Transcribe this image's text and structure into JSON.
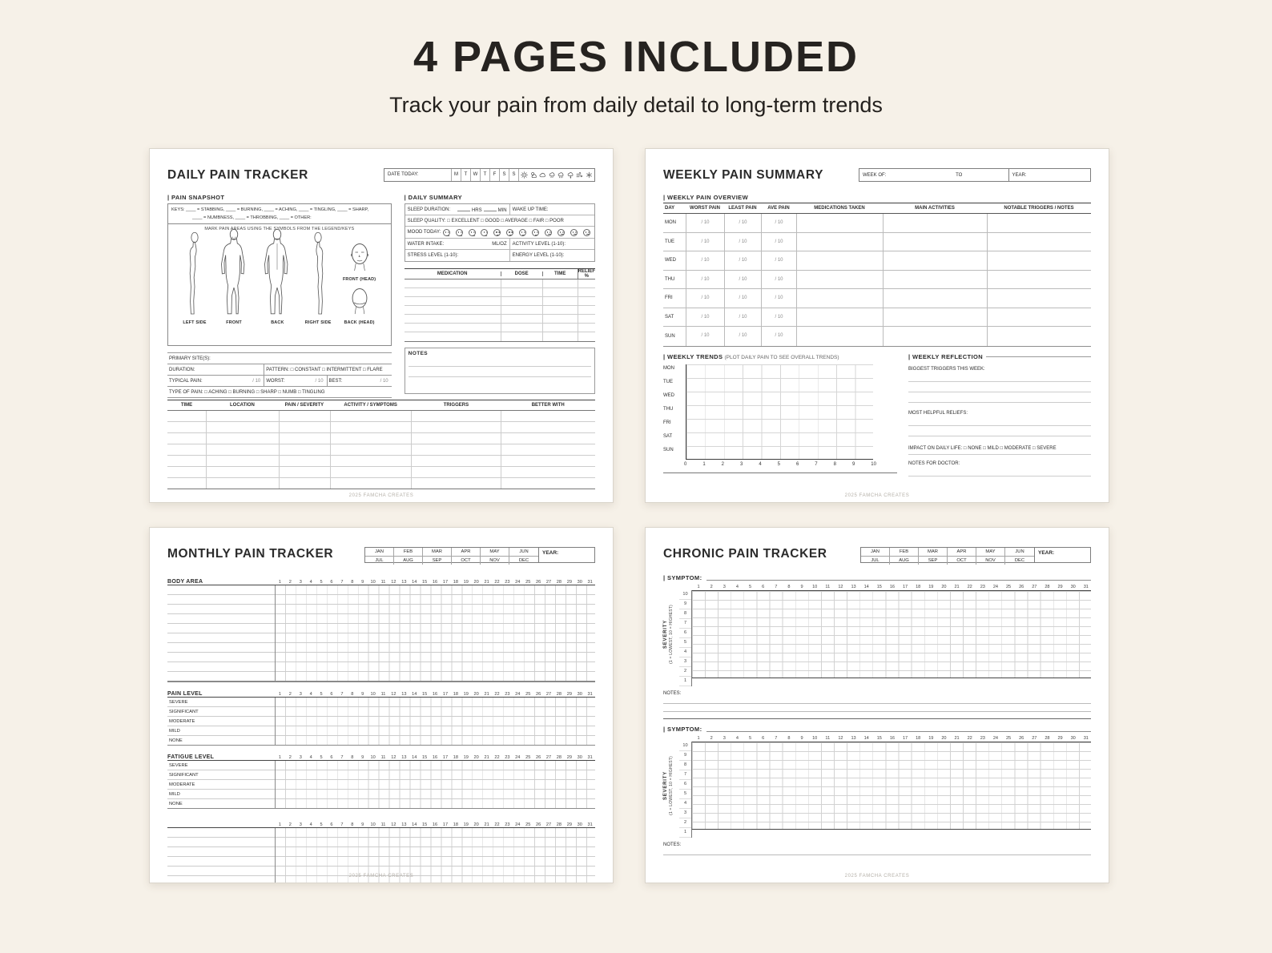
{
  "colors": {
    "bg": "#f6f1e8",
    "page": "#ffffff",
    "ink": "#2b2b2b",
    "grid": "#cccccc"
  },
  "banner": {
    "title": "4 PAGES INCLUDED",
    "subtitle": "Track your pain from daily detail to long-term trends"
  },
  "footer": "2025 FAMCHA CREATES",
  "daily": {
    "title": "DAILY PAIN TRACKER",
    "header": {
      "date_label": "DATE TODAY:",
      "days": [
        "M",
        "T",
        "W",
        "T",
        "F",
        "S",
        "S"
      ],
      "weather_icons": [
        "sun",
        "partly-cloudy",
        "cloud",
        "drizzle",
        "rain",
        "storm",
        "wind",
        "snow"
      ]
    },
    "snapshot": {
      "heading": "| PAIN SNAPSHOT",
      "keys_line1": "KEYS: ____ = STABBING,  ____ = BURNING,  ____ = ACHING,  ____ = TINGLING,  ____ = SHARP,",
      "keys_line2": "____ = NUMBNESS,  ____ = THROBBING,  ____ = OTHER:",
      "mark_note": "MARK PAIN AREAS USING THE SYMBOLS FROM THE LEGEND/KEYS",
      "figure_labels": [
        "LEFT SIDE",
        "FRONT",
        "BACK",
        "RIGHT SIDE"
      ],
      "head_front": "FRONT (HEAD)",
      "head_back": "BACK (HEAD)"
    },
    "summary": {
      "heading": "| DAILY SUMMARY",
      "sleep_duration": "SLEEP DURATION:",
      "hrs": "HRS",
      "min": "MIN",
      "wake_up": "WAKE UP TIME:",
      "sleep_quality": "SLEEP QUALITY:  □ EXCELLENT   □ GOOD   □ AVERAGE   □ FAIR   □ POOR",
      "mood_label": "MOOD TODAY:",
      "water": "WATER INTAKE:",
      "mloz": "ML/OZ",
      "activity": "ACTIVITY LEVEL (1-10):",
      "stress": "STRESS LEVEL (1-10):",
      "energy": "ENERGY LEVEL (1-10):"
    },
    "medication": {
      "headers": [
        "MEDICATION",
        "DOSE",
        "TIME",
        "RELIEF %"
      ]
    },
    "notes_label": "NOTES",
    "details": {
      "primary_site": "PRIMARY SITE(S):",
      "duration": "DURATION:",
      "pattern": "PATTERN:  □ CONSTANT  □ INTERMITTENT  □ FLARE",
      "typical": "TYPICAL PAIN:",
      "worst": "WORST:",
      "best": "BEST:",
      "out_of": "/ 10",
      "type_of_pain": "TYPE OF PAIN:  □ ACHING   □ BURNING   □ SHARP   □ NUMB   □ TINGLING"
    },
    "log_headers": [
      "TIME",
      "LOCATION",
      "PAIN / SEVERITY",
      "ACTIVITY / SYMPTOMS",
      "TRIGGERS",
      "BETTER WITH"
    ]
  },
  "weekly": {
    "title": "WEEKLY PAIN SUMMARY",
    "header": {
      "week_of": "WEEK OF:",
      "to": "TO",
      "year": "YEAR:"
    },
    "overview": {
      "heading": "| WEEKLY PAIN OVERVIEW",
      "headers": [
        "DAY",
        "WORST PAIN",
        "LEAST PAIN",
        "AVE PAIN",
        "MEDICATIONS TAKEN",
        "MAIN ACTIVITIES",
        "NOTABLE TRIGGERS / NOTES"
      ],
      "days": [
        "MON",
        "TUE",
        "WED",
        "THU",
        "FRI",
        "SAT",
        "SUN"
      ],
      "score": "/ 10"
    },
    "trends": {
      "heading_bold": "| WEEKLY TRENDS",
      "heading_light": "(PLOT DAILY PAIN TO SEE OVERALL TRENDS)",
      "days": [
        "MON",
        "TUE",
        "WED",
        "THU",
        "FRI",
        "SAT",
        "SUN"
      ],
      "axis": [
        "0",
        "1",
        "2",
        "3",
        "4",
        "5",
        "6",
        "7",
        "8",
        "9",
        "10"
      ]
    },
    "reflection": {
      "heading": "| WEEKLY REFLECTION",
      "q1": "BIGGEST TRIGGERS THIS WEEK:",
      "q2": "MOST HELPFUL RELIEFS:",
      "impact": "IMPACT ON DAILY LIFE:  □ NONE   □ MILD   □ MODERATE   □ SEVERE",
      "q3": "NOTES FOR DOCTOR:"
    }
  },
  "monthly": {
    "title": "MONTHLY PAIN TRACKER",
    "months": [
      "JAN",
      "FEB",
      "MAR",
      "APR",
      "MAY",
      "JUN",
      "JUL",
      "AUG",
      "SEP",
      "OCT",
      "NOV",
      "DEC"
    ],
    "year": "YEAR:",
    "body_area": "BODY AREA",
    "pain_level": "PAIN LEVEL",
    "fatigue_level": "FATIGUE LEVEL",
    "levels": [
      "SEVERE",
      "SIGNIFICANT",
      "MODERATE",
      "MILD",
      "NONE"
    ],
    "day_count": 31
  },
  "chronic": {
    "title": "CHRONIC PAIN TRACKER",
    "months": [
      "JAN",
      "FEB",
      "MAR",
      "APR",
      "MAY",
      "JUN",
      "JUL",
      "AUG",
      "SEP",
      "OCT",
      "NOV",
      "DEC"
    ],
    "year": "YEAR:",
    "symptom": "| SYMPTOM:",
    "severity_label": "SEVERITY",
    "severity_sub": "(1 = LOWEST, 10 = HIGHEST)",
    "notes": "NOTES:",
    "day_count": 31,
    "severity_max": 10
  }
}
